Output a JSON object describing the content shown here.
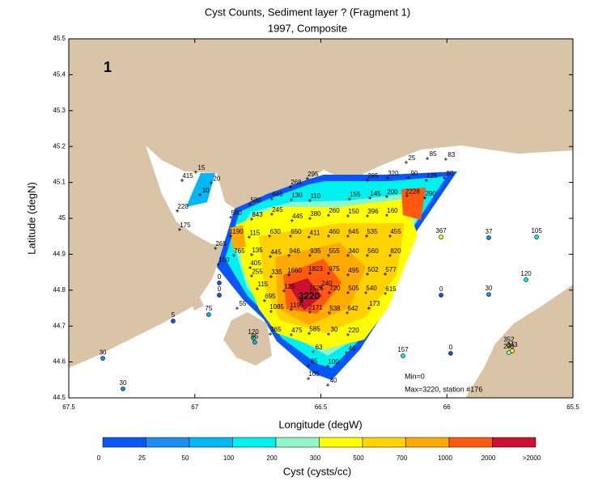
{
  "chart_data": {
    "type": "contour-map",
    "title": "Cyst Counts, Sediment layer ?  (Fragment 1)",
    "subtitle": "1997, Composite",
    "xlabel": "Longitude (degW)",
    "ylabel": "Latitude (degN)",
    "xlim": [
      67.5,
      65.5
    ],
    "ylim": [
      44.5,
      45.5
    ],
    "xticks": [
      67.5,
      67,
      66.5,
      66,
      65.5
    ],
    "yticks": [
      44.5,
      44.6,
      44.7,
      44.8,
      44.9,
      45,
      45.1,
      45.2,
      45.3,
      45.4,
      45.5
    ],
    "annotations": [
      "1",
      "Min=0",
      "Max=3220, station #176"
    ],
    "colorbar": {
      "label": "Cyst (cysts/cc)",
      "levels": [
        0,
        25,
        50,
        100,
        200,
        300,
        500,
        700,
        1000,
        2000,
        ">2000"
      ],
      "colors": [
        "#0a55f5",
        "#1a8ff0",
        "#00b8f5",
        "#00f0f0",
        "#90f5c8",
        "#ffff00",
        "#ffd200",
        "#ffaa00",
        "#ff5a10",
        "#cc1030"
      ]
    },
    "stations": [
      {
        "lon": 67.365,
        "lat": 44.61,
        "count": 30,
        "marker": "o"
      },
      {
        "lon": 67.285,
        "lat": 44.525,
        "count": 30,
        "marker": "o"
      },
      {
        "lon": 67.086,
        "lat": 44.714,
        "count": 5,
        "marker": "o"
      },
      {
        "lon": 66.945,
        "lat": 44.732,
        "count": 75,
        "marker": "o"
      },
      {
        "lon": 66.903,
        "lat": 44.786,
        "count": 0,
        "marker": "o"
      },
      {
        "lon": 66.903,
        "lat": 44.82,
        "count": 0,
        "marker": "o"
      },
      {
        "lon": 66.768,
        "lat": 44.667,
        "count": 120,
        "marker": "o"
      },
      {
        "lon": 66.762,
        "lat": 44.655,
        "count": 95,
        "marker": "o"
      },
      {
        "lon": 66.174,
        "lat": 44.617,
        "count": 157,
        "marker": "o"
      },
      {
        "lon": 65.985,
        "lat": 44.624,
        "count": 0,
        "marker": "o"
      },
      {
        "lon": 66.023,
        "lat": 44.948,
        "count": 367,
        "marker": "o"
      },
      {
        "lon": 65.834,
        "lat": 44.946,
        "count": 37,
        "marker": "o"
      },
      {
        "lon": 65.644,
        "lat": 44.948,
        "count": 105,
        "marker": "o"
      },
      {
        "lon": 65.686,
        "lat": 44.829,
        "count": 120,
        "marker": "o"
      },
      {
        "lon": 66.023,
        "lat": 44.786,
        "count": 0,
        "marker": "o"
      },
      {
        "lon": 65.834,
        "lat": 44.788,
        "count": 30,
        "marker": "o"
      },
      {
        "lon": 65.754,
        "lat": 44.646,
        "count": 352,
        "marker": "o"
      },
      {
        "lon": 65.741,
        "lat": 44.631,
        "count": 343,
        "marker": "o"
      },
      {
        "lon": 65.754,
        "lat": 44.626,
        "count": 230,
        "marker": "o"
      },
      {
        "lon": 66.974,
        "lat": 45.14,
        "count": 15,
        "marker": "+"
      },
      {
        "lon": 67.028,
        "lat": 45.117,
        "count": 415,
        "marker": "+"
      },
      {
        "lon": 66.913,
        "lat": 45.11,
        "count": 20,
        "marker": "+"
      },
      {
        "lon": 66.957,
        "lat": 45.077,
        "count": 10,
        "marker": "+"
      },
      {
        "lon": 67.047,
        "lat": 45.032,
        "count": 220,
        "marker": "+"
      },
      {
        "lon": 67.038,
        "lat": 44.98,
        "count": 175,
        "marker": "+"
      },
      {
        "lon": 66.139,
        "lat": 45.167,
        "count": 25,
        "marker": "+"
      },
      {
        "lon": 66.055,
        "lat": 45.178,
        "count": 85,
        "marker": "+"
      },
      {
        "lon": 65.982,
        "lat": 45.176,
        "count": 83,
        "marker": "+"
      },
      {
        "lon": 66.531,
        "lat": 45.122,
        "count": 295,
        "marker": "+"
      },
      {
        "lon": 66.598,
        "lat": 45.099,
        "count": 268,
        "marker": "+"
      },
      {
        "lon": 66.293,
        "lat": 45.117,
        "count": 285,
        "marker": "+"
      },
      {
        "lon": 66.213,
        "lat": 45.124,
        "count": 320,
        "marker": "+"
      },
      {
        "lon": 66.129,
        "lat": 45.124,
        "count": 90,
        "marker": "+"
      },
      {
        "lon": 66.059,
        "lat": 45.117,
        "count": 125,
        "marker": "+"
      },
      {
        "lon": 65.988,
        "lat": 45.124,
        "count": 80,
        "marker": "+"
      },
      {
        "lon": 66.672,
        "lat": 45.065,
        "count": 646,
        "marker": "+"
      },
      {
        "lon": 66.595,
        "lat": 45.063,
        "count": 130,
        "marker": "+"
      },
      {
        "lon": 66.521,
        "lat": 45.061,
        "count": 110,
        "marker": "+"
      },
      {
        "lon": 66.364,
        "lat": 45.065,
        "count": 155,
        "marker": "+"
      },
      {
        "lon": 66.283,
        "lat": 45.068,
        "count": 145,
        "marker": "+"
      },
      {
        "lon": 66.216,
        "lat": 45.072,
        "count": 200,
        "marker": "+"
      },
      {
        "lon": 66.136,
        "lat": 45.074,
        "count": 2228,
        "marker": "+"
      },
      {
        "lon": 66.065,
        "lat": 45.068,
        "count": 290,
        "marker": "+"
      },
      {
        "lon": 66.758,
        "lat": 45.05,
        "count": 580,
        "marker": "+"
      },
      {
        "lon": 66.835,
        "lat": 45.014,
        "count": 590,
        "marker": "+"
      },
      {
        "lon": 66.672,
        "lat": 45.023,
        "count": 245,
        "marker": "+"
      },
      {
        "lon": 66.521,
        "lat": 45.011,
        "count": 380,
        "marker": "+"
      },
      {
        "lon": 66.447,
        "lat": 45.02,
        "count": 260,
        "marker": "+"
      },
      {
        "lon": 66.37,
        "lat": 45.018,
        "count": 150,
        "marker": "+"
      },
      {
        "lon": 66.293,
        "lat": 45.018,
        "count": 396,
        "marker": "+"
      },
      {
        "lon": 66.216,
        "lat": 45.02,
        "count": 160,
        "marker": "+"
      },
      {
        "lon": 66.752,
        "lat": 45.009,
        "count": 843,
        "marker": "+"
      },
      {
        "lon": 66.592,
        "lat": 45.005,
        "count": 445,
        "marker": "+"
      },
      {
        "lon": 66.835,
        "lat": 44.962,
        "count": 1190,
        "marker": "+"
      },
      {
        "lon": 66.762,
        "lat": 44.959,
        "count": 115,
        "marker": "+"
      },
      {
        "lon": 66.681,
        "lat": 44.962,
        "count": 630,
        "marker": "+"
      },
      {
        "lon": 66.598,
        "lat": 44.962,
        "count": 650,
        "marker": "+"
      },
      {
        "lon": 66.524,
        "lat": 44.959,
        "count": 411,
        "marker": "+"
      },
      {
        "lon": 66.447,
        "lat": 44.962,
        "count": 460,
        "marker": "+"
      },
      {
        "lon": 66.37,
        "lat": 44.962,
        "count": 645,
        "marker": "+"
      },
      {
        "lon": 66.296,
        "lat": 44.962,
        "count": 535,
        "marker": "+"
      },
      {
        "lon": 66.203,
        "lat": 44.962,
        "count": 455,
        "marker": "+"
      },
      {
        "lon": 66.896,
        "lat": 44.928,
        "count": 265,
        "marker": "+"
      },
      {
        "lon": 66.823,
        "lat": 44.908,
        "count": 765,
        "marker": "+"
      },
      {
        "lon": 66.752,
        "lat": 44.91,
        "count": 135,
        "marker": "+"
      },
      {
        "lon": 66.678,
        "lat": 44.905,
        "count": 445,
        "marker": "+"
      },
      {
        "lon": 66.604,
        "lat": 44.908,
        "count": 946,
        "marker": "+"
      },
      {
        "lon": 66.521,
        "lat": 44.908,
        "count": 935,
        "marker": "+"
      },
      {
        "lon": 66.447,
        "lat": 44.908,
        "count": 555,
        "marker": "+"
      },
      {
        "lon": 66.37,
        "lat": 44.908,
        "count": 340,
        "marker": "+"
      },
      {
        "lon": 66.293,
        "lat": 44.908,
        "count": 560,
        "marker": "+"
      },
      {
        "lon": 66.203,
        "lat": 44.908,
        "count": 820,
        "marker": "+"
      },
      {
        "lon": 66.884,
        "lat": 44.883,
        "count": 100,
        "marker": "+"
      },
      {
        "lon": 66.758,
        "lat": 44.874,
        "count": 405,
        "marker": "+"
      },
      {
        "lon": 66.752,
        "lat": 44.851,
        "count": 255,
        "marker": "+"
      },
      {
        "lon": 66.675,
        "lat": 44.849,
        "count": 335,
        "marker": "+"
      },
      {
        "lon": 66.604,
        "lat": 44.854,
        "count": 1660,
        "marker": "+"
      },
      {
        "lon": 66.521,
        "lat": 44.858,
        "count": 1823,
        "marker": "+"
      },
      {
        "lon": 66.447,
        "lat": 44.858,
        "count": 975,
        "marker": "+"
      },
      {
        "lon": 66.37,
        "lat": 44.854,
        "count": 495,
        "marker": "+"
      },
      {
        "lon": 66.293,
        "lat": 44.856,
        "count": 502,
        "marker": "+"
      },
      {
        "lon": 66.222,
        "lat": 44.856,
        "count": 577,
        "marker": "+"
      },
      {
        "lon": 66.476,
        "lat": 44.818,
        "count": 240,
        "marker": "+"
      },
      {
        "lon": 66.73,
        "lat": 44.815,
        "count": 115,
        "marker": "+"
      },
      {
        "lon": 66.624,
        "lat": 44.809,
        "count": 125,
        "marker": "+"
      },
      {
        "lon": 66.518,
        "lat": 44.804,
        "count": 1525,
        "marker": "+"
      },
      {
        "lon": 66.444,
        "lat": 44.804,
        "count": 720,
        "marker": "+"
      },
      {
        "lon": 66.37,
        "lat": 44.804,
        "count": 505,
        "marker": "+"
      },
      {
        "lon": 66.299,
        "lat": 44.804,
        "count": 540,
        "marker": "+"
      },
      {
        "lon": 66.222,
        "lat": 44.802,
        "count": 615,
        "marker": "+"
      },
      {
        "lon": 66.553,
        "lat": 44.782,
        "count": 3220,
        "marker": "+"
      },
      {
        "lon": 66.701,
        "lat": 44.782,
        "count": 695,
        "marker": "+"
      },
      {
        "lon": 66.81,
        "lat": 44.761,
        "count": 55,
        "marker": "+"
      },
      {
        "lon": 66.675,
        "lat": 44.752,
        "count": 1085,
        "marker": "+"
      },
      {
        "lon": 66.595,
        "lat": 44.757,
        "count": 1195,
        "marker": "+"
      },
      {
        "lon": 66.521,
        "lat": 44.75,
        "count": 2171,
        "marker": "+"
      },
      {
        "lon": 66.444,
        "lat": 44.748,
        "count": 538,
        "marker": "+"
      },
      {
        "lon": 66.373,
        "lat": 44.748,
        "count": 642,
        "marker": "+"
      },
      {
        "lon": 66.287,
        "lat": 44.761,
        "count": 173,
        "marker": "+"
      },
      {
        "lon": 66.678,
        "lat": 44.689,
        "count": 365,
        "marker": "+"
      },
      {
        "lon": 66.595,
        "lat": 44.687,
        "count": 475,
        "marker": "+"
      },
      {
        "lon": 66.524,
        "lat": 44.691,
        "count": 585,
        "marker": "+"
      },
      {
        "lon": 66.447,
        "lat": 44.689,
        "count": 30,
        "marker": "+"
      },
      {
        "lon": 66.37,
        "lat": 44.687,
        "count": 220,
        "marker": "+"
      },
      {
        "lon": 66.508,
        "lat": 44.64,
        "count": 63,
        "marker": "+"
      },
      {
        "lon": 66.376,
        "lat": 44.637,
        "count": 40,
        "marker": "+"
      },
      {
        "lon": 66.527,
        "lat": 44.601,
        "count": 85,
        "marker": "+"
      },
      {
        "lon": 66.45,
        "lat": 44.599,
        "count": 100,
        "marker": "+"
      },
      {
        "lon": 66.527,
        "lat": 44.565,
        "count": 105,
        "marker": "+"
      },
      {
        "lon": 66.45,
        "lat": 44.547,
        "count": 40,
        "marker": "+"
      }
    ]
  }
}
